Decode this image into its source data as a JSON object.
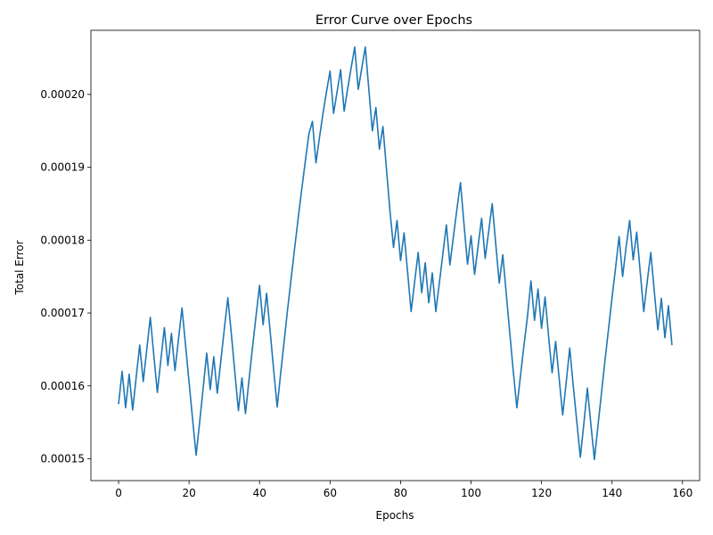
{
  "chart_data": {
    "type": "line",
    "title": "Error Curve over Epochs",
    "xlabel": "Epochs",
    "ylabel": "Total Error",
    "xlim": [
      -7.85,
      164.85
    ],
    "ylim": [
      0.000147,
      0.0002088
    ],
    "xticks": [
      0,
      20,
      40,
      60,
      80,
      100,
      120,
      140,
      160
    ],
    "xtick_labels": [
      "0",
      "20",
      "40",
      "60",
      "80",
      "100",
      "120",
      "140",
      "160"
    ],
    "yticks": [
      0.00015,
      0.00016,
      0.00017,
      0.00018,
      0.00019,
      0.0002
    ],
    "ytick_labels": [
      "0.00015",
      "0.00016",
      "0.00017",
      "0.00018",
      "0.00019",
      "0.00020"
    ],
    "grid": false,
    "line_color": "#1f77b4",
    "series": [
      {
        "x": [
          0,
          1,
          2,
          3,
          4,
          5,
          6,
          7,
          8,
          9,
          10,
          11,
          12,
          13,
          14,
          15,
          16,
          17,
          18,
          19,
          20,
          21,
          22,
          23,
          24,
          25,
          26,
          27,
          28,
          29,
          30,
          31,
          32,
          33,
          34,
          35,
          36,
          37,
          38,
          39,
          40,
          41,
          42,
          43,
          44,
          45,
          46,
          47,
          48,
          49,
          50,
          51,
          52,
          53,
          54,
          55,
          56,
          57,
          58,
          59,
          60,
          61,
          62,
          63,
          64,
          65,
          66,
          67,
          68,
          69,
          70,
          71,
          72,
          73,
          74,
          75,
          76,
          77,
          78,
          79,
          80,
          81,
          82,
          83,
          84,
          85,
          86,
          87,
          88,
          89,
          90,
          91,
          92,
          93,
          94,
          95,
          96,
          97,
          98,
          99,
          100,
          101,
          102,
          103,
          104,
          105,
          106,
          107,
          108,
          109,
          110,
          111,
          112,
          113,
          114,
          115,
          116,
          117,
          118,
          119,
          120,
          121,
          122,
          123,
          124,
          125,
          126,
          127,
          128,
          129,
          130,
          131,
          132,
          133,
          134,
          135,
          136,
          137,
          138,
          139,
          140,
          141,
          142,
          143,
          144,
          145,
          146,
          147,
          148,
          149,
          150,
          151,
          152,
          153,
          154,
          155,
          156,
          157
        ],
        "values": [
          0.0001575,
          0.000162,
          0.000157,
          0.0001616,
          0.0001567,
          0.0001612,
          0.0001656,
          0.0001606,
          0.000165,
          0.0001694,
          0.0001642,
          0.0001591,
          0.0001636,
          0.000168,
          0.0001628,
          0.0001672,
          0.0001621,
          0.0001664,
          0.0001707,
          0.0001656,
          0.0001605,
          0.0001554,
          0.0001505,
          0.000155,
          0.0001597,
          0.0001645,
          0.0001595,
          0.000164,
          0.000159,
          0.0001634,
          0.0001678,
          0.0001721,
          0.0001671,
          0.0001618,
          0.0001566,
          0.0001611,
          0.0001562,
          0.0001608,
          0.0001653,
          0.0001696,
          0.0001738,
          0.0001684,
          0.0001727,
          0.0001675,
          0.0001622,
          0.0001571,
          0.0001618,
          0.0001662,
          0.0001707,
          0.0001749,
          0.0001791,
          0.0001832,
          0.0001871,
          0.0001909,
          0.0001946,
          0.0001963,
          0.0001906,
          0.0001941,
          0.0001974,
          0.0002004,
          0.0002032,
          0.0001974,
          0.0002004,
          0.0002034,
          0.0001977,
          0.0002008,
          0.0002037,
          0.0002065,
          0.0002007,
          0.0002036,
          0.0002065,
          0.0002007,
          0.000195,
          0.0001982,
          0.0001925,
          0.0001956,
          0.0001898,
          0.000184,
          0.000179,
          0.0001827,
          0.0001772,
          0.000181,
          0.0001756,
          0.0001702,
          0.0001743,
          0.0001783,
          0.0001728,
          0.0001769,
          0.0001714,
          0.0001755,
          0.0001702,
          0.0001741,
          0.0001781,
          0.0001821,
          0.0001766,
          0.0001805,
          0.0001843,
          0.0001879,
          0.0001822,
          0.0001767,
          0.0001806,
          0.0001753,
          0.0001792,
          0.000183,
          0.0001775,
          0.0001812,
          0.000185,
          0.0001795,
          0.0001741,
          0.000178,
          0.0001726,
          0.0001672,
          0.0001619,
          0.000157,
          0.0001613,
          0.0001655,
          0.0001695,
          0.0001744,
          0.000169,
          0.0001733,
          0.0001679,
          0.0001722,
          0.0001668,
          0.0001618,
          0.0001661,
          0.000161,
          0.000156,
          0.0001605,
          0.0001652,
          0.00016,
          0.0001551,
          0.0001502,
          0.0001548,
          0.0001597,
          0.0001547,
          0.0001499,
          0.0001545,
          0.000159,
          0.0001635,
          0.0001678,
          0.0001721,
          0.0001762,
          0.0001805,
          0.000175,
          0.0001791,
          0.0001827,
          0.0001773,
          0.0001811,
          0.0001756,
          0.0001702,
          0.0001744,
          0.0001783,
          0.0001729,
          0.0001677,
          0.000172,
          0.0001666,
          0.000171,
          0.0001656
        ]
      }
    ]
  }
}
